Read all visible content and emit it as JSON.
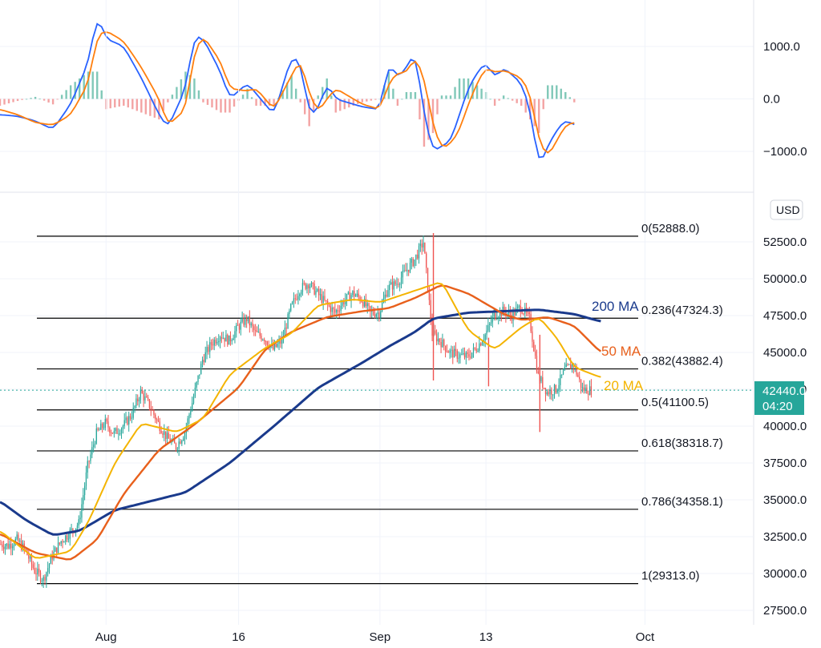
{
  "colors": {
    "up": "#26a69a",
    "down": "#ef5350",
    "ma20": "#f4b400",
    "ma50": "#e8601c",
    "ma200": "#1a3a8c",
    "macd": "#2962ff",
    "signal": "#ff7f0e",
    "hist_up": "#80c8b8",
    "hist_down": "#f3a3a3",
    "price_badge": "#26a69a",
    "fib": "#000000"
  },
  "price_axis": {
    "currency": "USD",
    "ticks": [
      "52500.0",
      "50000.0",
      "47500.0",
      "45000.0",
      "42500.0",
      "40000.0",
      "37500.0",
      "35000.0",
      "32500.0",
      "30000.0",
      "27500.0"
    ],
    "last_price": "42440.0",
    "countdown": "04:20"
  },
  "macd_axis": {
    "ticks": [
      "1000.0",
      "0.0",
      "−1000.0"
    ]
  },
  "time_axis": {
    "ticks": [
      "Aug",
      "16",
      "Sep",
      "13",
      "Oct"
    ]
  },
  "fib_levels": [
    {
      "label": "0(52888.0)",
      "value": 52888.0
    },
    {
      "label": "0.236(47324.3)",
      "value": 47324.3
    },
    {
      "label": "0.382(43882.4)",
      "value": 43882.4
    },
    {
      "label": "0.5(41100.5)",
      "value": 41100.5
    },
    {
      "label": "0.618(38318.7)",
      "value": 38318.7
    },
    {
      "label": "0.786(34358.1)",
      "value": 34358.1
    },
    {
      "label": "1(29313.0)",
      "value": 29313.0
    }
  ],
  "ma_labels": {
    "ma200": "200 MA",
    "ma50": "50 MA",
    "ma20": "20 MA"
  },
  "chart_data": {
    "type": "candlestick",
    "x_unit": "days since Jul 20, 2021",
    "y_range": [
      27000,
      55500
    ],
    "macd_range": [
      -1700,
      1700
    ],
    "time_ticks": [
      {
        "label": "Aug",
        "day": 12
      },
      {
        "label": "16",
        "day": 27
      },
      {
        "label": "Sep",
        "day": 43
      },
      {
        "label": "13",
        "day": 55
      },
      {
        "label": "Oct",
        "day": 73
      }
    ],
    "anchors": [
      [
        0,
        32000
      ],
      [
        1,
        31900
      ],
      [
        2,
        32300
      ],
      [
        3,
        31500
      ],
      [
        4,
        30200
      ],
      [
        5,
        29600
      ],
      [
        6,
        31200
      ],
      [
        7,
        32200
      ],
      [
        8,
        32800
      ],
      [
        9,
        33400
      ],
      [
        10,
        37300
      ],
      [
        11,
        39500
      ],
      [
        12,
        40200
      ],
      [
        13,
        39500
      ],
      [
        14,
        40000
      ],
      [
        15,
        40800
      ],
      [
        16,
        42300
      ],
      [
        17,
        41400
      ],
      [
        18,
        40200
      ],
      [
        19,
        39200
      ],
      [
        20,
        38600
      ],
      [
        21,
        39600
      ],
      [
        22,
        42000
      ],
      [
        23,
        44500
      ],
      [
        24,
        45600
      ],
      [
        25,
        46200
      ],
      [
        26,
        45800
      ],
      [
        27,
        46700
      ],
      [
        28,
        47300
      ],
      [
        29,
        46300
      ],
      [
        30,
        46000
      ],
      [
        31,
        45200
      ],
      [
        32,
        45800
      ],
      [
        33,
        48000
      ],
      [
        34,
        49300
      ],
      [
        35,
        49700
      ],
      [
        36,
        49000
      ],
      [
        37,
        48300
      ],
      [
        38,
        47700
      ],
      [
        39,
        48500
      ],
      [
        40,
        49000
      ],
      [
        41,
        48600
      ],
      [
        42,
        47700
      ],
      [
        43,
        47700
      ],
      [
        44,
        49400
      ],
      [
        45,
        49700
      ],
      [
        46,
        50500
      ],
      [
        47,
        51300
      ],
      [
        48,
        52500
      ],
      [
        49,
        46300
      ],
      [
        50,
        45700
      ],
      [
        51,
        45000
      ],
      [
        52,
        44800
      ],
      [
        53,
        44700
      ],
      [
        54,
        45300
      ],
      [
        55,
        46200
      ],
      [
        56,
        47500
      ],
      [
        57,
        47800
      ],
      [
        58,
        47500
      ],
      [
        59,
        48100
      ],
      [
        60,
        47300
      ],
      [
        61,
        43400
      ],
      [
        62,
        42300
      ],
      [
        63,
        42500
      ],
      [
        64,
        43800
      ],
      [
        65,
        44200
      ],
      [
        66,
        42500
      ],
      [
        67,
        42440
      ]
    ],
    "ma20": [
      [
        0,
        32900
      ],
      [
        4,
        31000
      ],
      [
        8,
        31500
      ],
      [
        10,
        33500
      ],
      [
        13,
        37500
      ],
      [
        16,
        40200
      ],
      [
        20,
        39600
      ],
      [
        23,
        40500
      ],
      [
        26,
        43500
      ],
      [
        30,
        45300
      ],
      [
        33,
        46300
      ],
      [
        36,
        48200
      ],
      [
        40,
        48600
      ],
      [
        43,
        48400
      ],
      [
        47,
        49200
      ],
      [
        50,
        49800
      ],
      [
        53,
        46500
      ],
      [
        56,
        45200
      ],
      [
        59,
        46700
      ],
      [
        61,
        47400
      ],
      [
        63,
        46000
      ],
      [
        65,
        44000
      ],
      [
        68,
        43300
      ]
    ],
    "ma50": [
      [
        0,
        32700
      ],
      [
        4,
        31400
      ],
      [
        8,
        30900
      ],
      [
        11,
        32300
      ],
      [
        14,
        35400
      ],
      [
        18,
        38400
      ],
      [
        22,
        40100
      ],
      [
        27,
        42600
      ],
      [
        30,
        45200
      ],
      [
        33,
        46400
      ],
      [
        37,
        47400
      ],
      [
        41,
        47800
      ],
      [
        44,
        48000
      ],
      [
        47,
        48700
      ],
      [
        50,
        49600
      ],
      [
        53,
        49000
      ],
      [
        57,
        47600
      ],
      [
        59,
        47200
      ],
      [
        62,
        47400
      ],
      [
        65,
        46800
      ],
      [
        68,
        45000
      ]
    ],
    "ma200": [
      [
        0,
        34900
      ],
      [
        3,
        33600
      ],
      [
        6,
        32600
      ],
      [
        9,
        32900
      ],
      [
        13,
        34300
      ],
      [
        17,
        34900
      ],
      [
        21,
        35500
      ],
      [
        26,
        37500
      ],
      [
        31,
        40000
      ],
      [
        36,
        42600
      ],
      [
        41,
        44300
      ],
      [
        44,
        45400
      ],
      [
        47,
        46400
      ],
      [
        49,
        47300
      ],
      [
        53,
        47700
      ],
      [
        57,
        47800
      ],
      [
        61,
        47900
      ],
      [
        65,
        47600
      ],
      [
        68,
        47100
      ]
    ],
    "macd": [
      [
        0,
        -300
      ],
      [
        2,
        -330
      ],
      [
        4,
        -420
      ],
      [
        6,
        -580
      ],
      [
        8,
        -100
      ],
      [
        10,
        700
      ],
      [
        11,
        1600
      ],
      [
        12,
        1150
      ],
      [
        14,
        1000
      ],
      [
        16,
        400
      ],
      [
        18,
        -300
      ],
      [
        19,
        -550
      ],
      [
        21,
        200
      ],
      [
        22,
        1200
      ],
      [
        23,
        1150
      ],
      [
        25,
        500
      ],
      [
        26,
        0
      ],
      [
        28,
        300
      ],
      [
        29,
        100
      ],
      [
        31,
        -300
      ],
      [
        33,
        800
      ],
      [
        34,
        700
      ],
      [
        35,
        -300
      ],
      [
        36,
        -200
      ],
      [
        37,
        300
      ],
      [
        38,
        0
      ],
      [
        40,
        -100
      ],
      [
        41,
        -150
      ],
      [
        43,
        -200
      ],
      [
        44,
        700
      ],
      [
        45,
        400
      ],
      [
        46,
        600
      ],
      [
        47,
        900
      ],
      [
        48,
        -300
      ],
      [
        49,
        -1000
      ],
      [
        50,
        -900
      ],
      [
        51,
        -800
      ],
      [
        52,
        -300
      ],
      [
        53,
        200
      ],
      [
        54,
        500
      ],
      [
        55,
        700
      ],
      [
        56,
        400
      ],
      [
        57,
        600
      ],
      [
        59,
        300
      ],
      [
        60,
        -200
      ],
      [
        61,
        -1300
      ],
      [
        62,
        -900
      ],
      [
        63,
        -600
      ],
      [
        64,
        -400
      ],
      [
        65,
        -500
      ]
    ],
    "signal": [
      [
        0,
        -200
      ],
      [
        2,
        -300
      ],
      [
        4,
        -450
      ],
      [
        6,
        -500
      ],
      [
        8,
        -300
      ],
      [
        10,
        300
      ],
      [
        11,
        1200
      ],
      [
        12,
        1300
      ],
      [
        14,
        1100
      ],
      [
        16,
        600
      ],
      [
        18,
        0
      ],
      [
        19,
        -500
      ],
      [
        21,
        -200
      ],
      [
        22,
        900
      ],
      [
        23,
        1200
      ],
      [
        25,
        700
      ],
      [
        26,
        200
      ],
      [
        28,
        150
      ],
      [
        29,
        200
      ],
      [
        31,
        -200
      ],
      [
        33,
        450
      ],
      [
        34,
        750
      ],
      [
        35,
        100
      ],
      [
        36,
        -250
      ],
      [
        37,
        0
      ],
      [
        38,
        200
      ],
      [
        40,
        0
      ],
      [
        41,
        -100
      ],
      [
        43,
        -200
      ],
      [
        44,
        300
      ],
      [
        45,
        500
      ],
      [
        46,
        500
      ],
      [
        47,
        800
      ],
      [
        48,
        400
      ],
      [
        49,
        -500
      ],
      [
        50,
        -950
      ],
      [
        51,
        -850
      ],
      [
        52,
        -600
      ],
      [
        53,
        -100
      ],
      [
        54,
        300
      ],
      [
        55,
        600
      ],
      [
        56,
        500
      ],
      [
        57,
        550
      ],
      [
        59,
        400
      ],
      [
        60,
        100
      ],
      [
        61,
        -800
      ],
      [
        62,
        -1100
      ],
      [
        63,
        -800
      ],
      [
        64,
        -500
      ],
      [
        65,
        -450
      ]
    ]
  }
}
